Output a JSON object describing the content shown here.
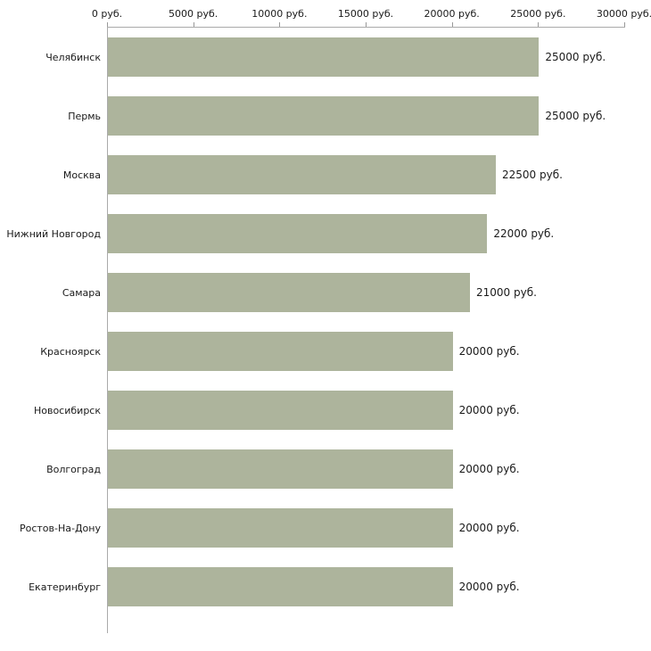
{
  "chart_data": {
    "type": "bar",
    "orientation": "horizontal",
    "categories": [
      "Челябинск",
      "Пермь",
      "Москва",
      "Нижний Новгород",
      "Самара",
      "Красноярск",
      "Новосибирск",
      "Волгоград",
      "Ростов-На-Дону",
      "Екатеринбург"
    ],
    "values": [
      25000,
      25000,
      22500,
      22000,
      21000,
      20000,
      20000,
      20000,
      20000,
      20000
    ],
    "value_labels": [
      "25000 руб.",
      "25000 руб.",
      "22500 руб.",
      "22000 руб.",
      "21000 руб.",
      "20000 руб.",
      "20000 руб.",
      "20000 руб.",
      "20000 руб.",
      "20000 руб."
    ],
    "x_ticks": [
      0,
      5000,
      10000,
      15000,
      20000,
      25000,
      30000
    ],
    "x_tick_labels": [
      "0 руб.",
      "5000 руб.",
      "10000 руб.",
      "15000 руб.",
      "20000 руб.",
      "25000 руб.",
      "30000 руб."
    ],
    "xlim": [
      0,
      30000
    ],
    "grid": false,
    "legend": null,
    "bar_color": "#adb49c",
    "axis_color": "#aaaaaa",
    "text_color": "#1a1a1a"
  }
}
